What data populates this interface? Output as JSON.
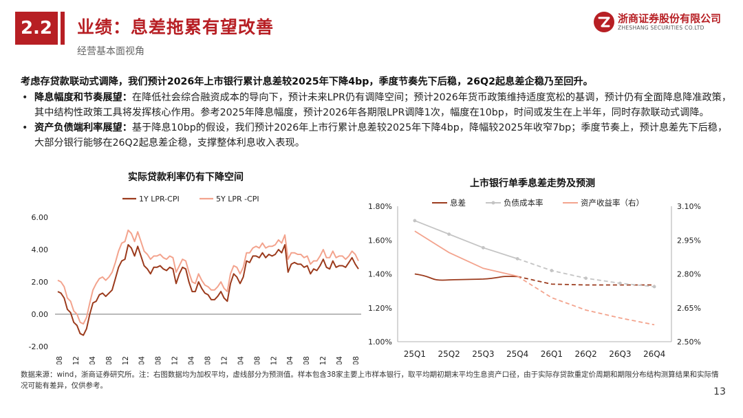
{
  "header": {
    "section_number": "2.2",
    "title": "业绩：息差拖累有望改善",
    "subtitle": "经营基本面视角",
    "logo_cn": "浙商证券股份有限公司",
    "logo_en": "ZHESHANG SECURITIES CO.LTD",
    "brand_color": "#b71f24"
  },
  "body": {
    "lead": "考虑存贷款联动式调降，我们预计2026年上市银行累计息差较2025年下降4bp，季度节奏先下后稳，26Q2起息差企稳乃至回升。",
    "bullets": [
      {
        "head": "降息幅度和节奏展望：",
        "text": "在降低社会综合融资成本的导向下，预计未来LPR仍有调降空间；预计2026年货币政策维持适度宽松的基调，预计仍有全面降息降准政策，其中结构性政策工具将发挥核心作用。参考2025年降息幅度，预计2026年各期限LPR调降1次，幅度在10bp，时间或发生在上半年，同时存款联动式调降。"
      },
      {
        "head": "资产负债端利率展望：",
        "text": "基于降息10bp的假设，我们预计2026年上市行累计息差较2025年下降4bp，降幅较2025年收窄7bp；季度节奏上，预计息差先下后稳，大部分银行能够在26Q2起息差企稳，支撑整体利息收入表现。"
      }
    ]
  },
  "footer": {
    "note": "数据来源：wind，浙商证券研究所。注：右图数据均为加权平均，虚线部分为预测值。样本包含38家主要上市样本银行，取平均期初期末平均生息资产口径，由于实际存贷款重定价周期和期限分布结构测算结果和实际情况可能有差异，仅供参考。",
    "page_number": "13"
  },
  "chart_data": [
    {
      "type": "line",
      "title": "实际贷款利率仍有下降空间",
      "xlabel": "",
      "ylabel": "",
      "ylim": [
        -2.0,
        6.0
      ],
      "yticks": [
        "6.00",
        "4.00",
        "2.00",
        "0.00",
        "-2.00"
      ],
      "ytick_values": [
        6,
        4,
        2,
        0,
        -2
      ],
      "xtick_labels": [
        "2019-08",
        "2019-12",
        "2020-04",
        "2020-08",
        "2020-12",
        "2021-04",
        "2021-08",
        "2021-12",
        "2022-04",
        "2022-08",
        "2022-12",
        "2023-04",
        "2023-08",
        "2023-12",
        "2024-04",
        "2024-08",
        "2024-12",
        "2025-04",
        "2025-08"
      ],
      "legend": [
        "1Y LPR-CPI",
        "5Y LPR -CPI"
      ],
      "colors": [
        "#9b3a1c",
        "#f3a38d"
      ],
      "series": [
        {
          "name": "1Y LPR-CPI",
          "values": [
            1.4,
            1.3,
            1.0,
            0.3,
            0.1,
            -0.5,
            -0.7,
            -1.2,
            -1.3,
            -0.9,
            0.0,
            0.7,
            0.8,
            1.2,
            1.3,
            1.1,
            1.3,
            1.5,
            2.2,
            2.9,
            3.3,
            3.4,
            4.3,
            4.1,
            3.6,
            4.2,
            3.6,
            3.0,
            2.8,
            2.5,
            2.9,
            2.9,
            3.0,
            2.8,
            2.7,
            2.9,
            2.8,
            1.9,
            2.5,
            2.9,
            2.8,
            2.0,
            1.4,
            1.4,
            2.0,
            1.6,
            1.3,
            1.2,
            0.9,
            0.9,
            1.1,
            1.4,
            1.0,
            0.8,
            1.9,
            2.5,
            2.3,
            1.9,
            2.3,
            3.3,
            3.2,
            3.6,
            3.6,
            3.5,
            3.8,
            3.5,
            3.7,
            3.6,
            3.7,
            4.0,
            3.8,
            4.3,
            2.6,
            3.1,
            3.2,
            3.1,
            3.1,
            2.9,
            3.0,
            2.5,
            2.8,
            2.7,
            3.0,
            3.4,
            2.9,
            2.8,
            3.3,
            2.9,
            3.0,
            3.0,
            2.9,
            3.2,
            3.5,
            3.1,
            2.8
          ]
        },
        {
          "name": "5Y LPR -CPI",
          "values": [
            2.1,
            2.0,
            1.7,
            1.0,
            0.8,
            0.2,
            0.0,
            -0.5,
            -0.6,
            -0.2,
            0.7,
            1.5,
            1.9,
            2.2,
            2.3,
            2.1,
            2.3,
            2.6,
            3.2,
            3.9,
            4.4,
            4.5,
            5.2,
            5.0,
            4.5,
            5.1,
            4.5,
            3.9,
            3.7,
            3.4,
            3.6,
            3.6,
            3.7,
            3.5,
            3.4,
            3.6,
            3.5,
            2.6,
            3.0,
            3.4,
            3.3,
            2.6,
            2.0,
            1.9,
            2.5,
            2.1,
            1.8,
            1.7,
            1.5,
            1.5,
            1.7,
            2.0,
            1.6,
            1.4,
            2.5,
            3.0,
            2.9,
            2.5,
            2.9,
            3.8,
            3.8,
            4.1,
            4.2,
            4.1,
            4.4,
            4.1,
            4.2,
            4.2,
            4.3,
            4.6,
            4.4,
            4.9,
            3.4,
            3.8,
            3.8,
            3.7,
            3.7,
            3.5,
            3.6,
            3.1,
            3.3,
            3.3,
            3.6,
            4.0,
            3.5,
            3.5,
            3.9,
            3.5,
            3.6,
            3.6,
            3.4,
            3.6,
            3.9,
            3.7,
            3.3
          ]
        }
      ]
    },
    {
      "type": "line",
      "title": "上市银行单季息差走势及预测",
      "categories": [
        "25Q1",
        "25Q2",
        "25Q3",
        "25Q4",
        "26Q1",
        "26Q2",
        "26Q3",
        "26Q4"
      ],
      "ylim_left": [
        1.0,
        1.8
      ],
      "yticks_left": [
        "1.80%",
        "1.60%",
        "1.40%",
        "1.20%",
        "1.00%"
      ],
      "ytick_values_left": [
        1.8,
        1.6,
        1.4,
        1.2,
        1.0
      ],
      "ylim_right": [
        2.5,
        3.1
      ],
      "yticks_right": [
        "3.10%",
        "2.95%",
        "2.80%",
        "2.65%",
        "2.50%"
      ],
      "ytick_values_right": [
        3.1,
        2.95,
        2.8,
        2.65,
        2.5
      ],
      "forecast_from_index": 3,
      "legend": [
        "息差",
        "负债成本率",
        "资产收益率（右）"
      ],
      "colors": [
        "#9b3a1c",
        "#c4c4c4",
        "#f3a38d"
      ],
      "series": [
        {
          "name": "息差",
          "axis": "left",
          "values": [
            1.4,
            1.365,
            1.37,
            1.385,
            1.34,
            1.335,
            1.335,
            1.335
          ]
        },
        {
          "name": "负债成本率",
          "axis": "left",
          "values": [
            1.715,
            1.635,
            1.555,
            1.49,
            1.42,
            1.375,
            1.345,
            1.325
          ]
        },
        {
          "name": "资产收益率（右）",
          "axis": "right",
          "values": [
            2.99,
            2.895,
            2.825,
            2.79,
            2.695,
            2.64,
            2.605,
            2.575
          ]
        }
      ]
    }
  ]
}
